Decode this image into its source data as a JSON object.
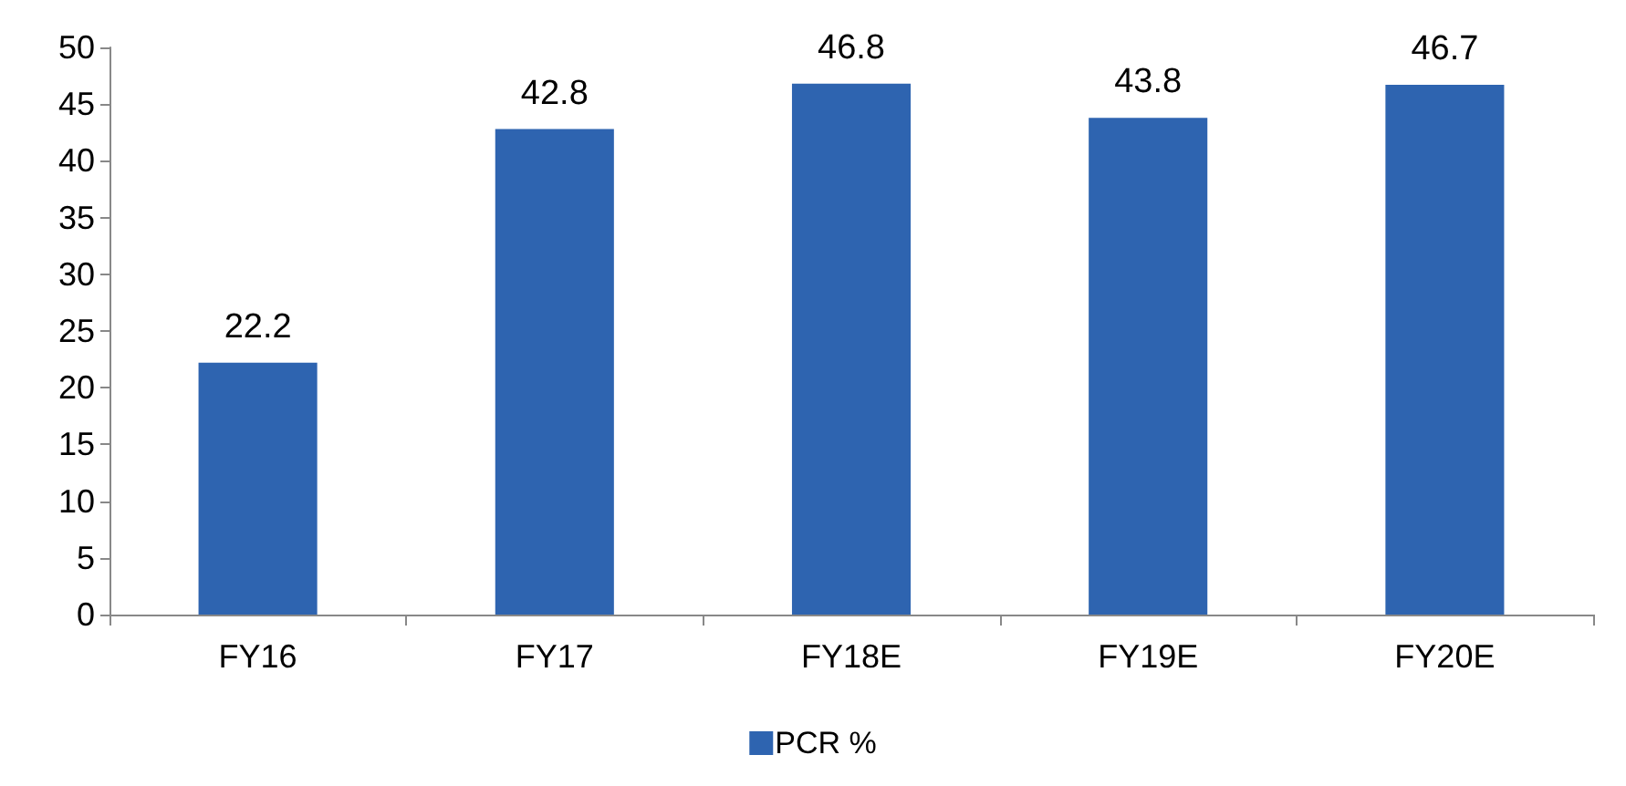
{
  "chart_data": {
    "type": "bar",
    "categories": [
      "FY16",
      "FY17",
      "FY18E",
      "FY19E",
      "FY20E"
    ],
    "series": [
      {
        "name": "PCR %",
        "color": "#2e64b0",
        "values": [
          22.2,
          42.8,
          46.8,
          43.8,
          46.7
        ]
      }
    ],
    "ylim": [
      0,
      50
    ],
    "yticks": [
      0,
      5,
      10,
      15,
      20,
      25,
      30,
      35,
      40,
      45,
      50
    ],
    "data_labels": true,
    "grid": false,
    "legend": "bottom"
  }
}
